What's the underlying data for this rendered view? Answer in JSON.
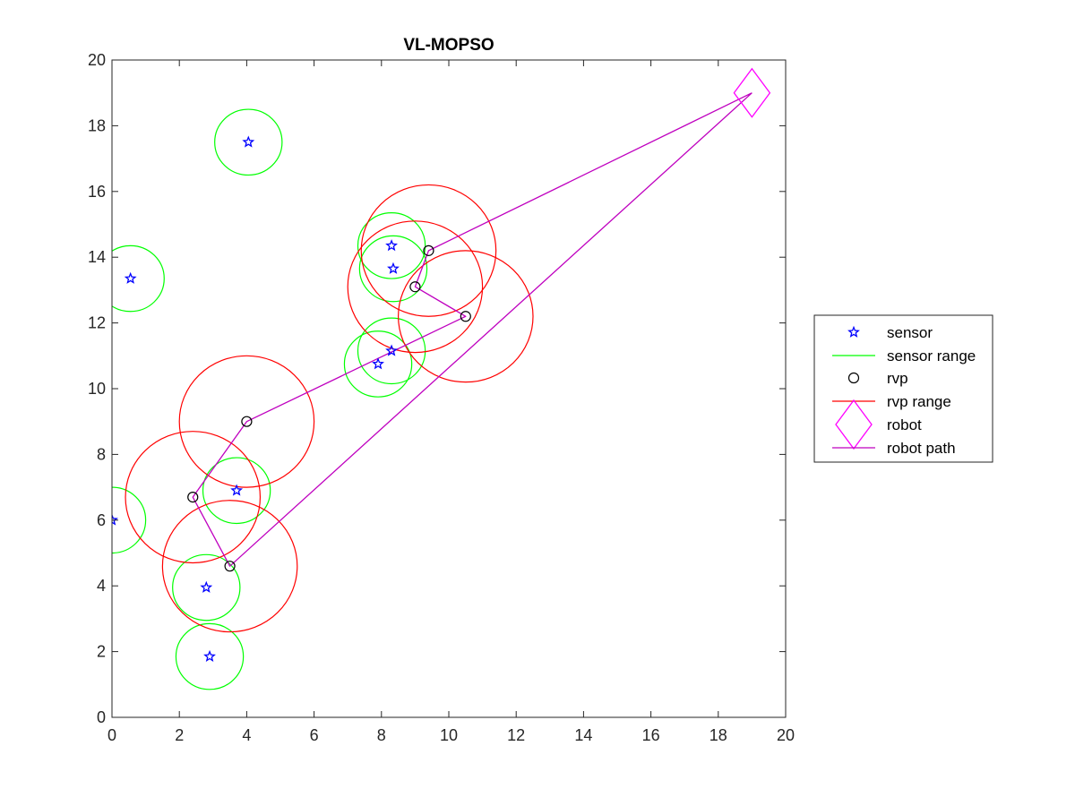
{
  "chart_data": {
    "type": "scatter",
    "title": "VL-MOPSO",
    "xlabel": "",
    "ylabel": "",
    "xlim": [
      0,
      20
    ],
    "ylim": [
      0,
      20
    ],
    "xticks": [
      0,
      2,
      4,
      6,
      8,
      10,
      12,
      14,
      16,
      18,
      20
    ],
    "yticks": [
      0,
      2,
      4,
      6,
      8,
      10,
      12,
      14,
      16,
      18,
      20
    ],
    "grid": false,
    "legend_position": "outside-right",
    "legend": [
      {
        "key": "sensor",
        "label": "sensor"
      },
      {
        "key": "sensor_range",
        "label": "sensor range"
      },
      {
        "key": "rvp",
        "label": "rvp"
      },
      {
        "key": "rvp_range",
        "label": "rvp range"
      },
      {
        "key": "robot",
        "label": "robot"
      },
      {
        "key": "robot_path",
        "label": "robot path"
      }
    ],
    "sensors": [
      {
        "x": 4.05,
        "y": 17.5
      },
      {
        "x": 0.55,
        "y": 13.35
      },
      {
        "x": 8.3,
        "y": 14.35
      },
      {
        "x": 8.35,
        "y": 13.65
      },
      {
        "x": 8.3,
        "y": 11.15
      },
      {
        "x": 7.9,
        "y": 10.75
      },
      {
        "x": 3.7,
        "y": 6.9
      },
      {
        "x": 0.0,
        "y": 6.0
      },
      {
        "x": 2.8,
        "y": 3.95
      },
      {
        "x": 2.9,
        "y": 1.85
      }
    ],
    "sensor_range_radius": 1.0,
    "rvps": [
      {
        "x": 9.4,
        "y": 14.2
      },
      {
        "x": 9.0,
        "y": 13.1
      },
      {
        "x": 10.5,
        "y": 12.2
      },
      {
        "x": 4.0,
        "y": 9.0
      },
      {
        "x": 2.4,
        "y": 6.7
      },
      {
        "x": 3.5,
        "y": 4.6
      }
    ],
    "rvp_range_radius": 2.0,
    "robot": {
      "x": 19.0,
      "y": 19.0
    },
    "robot_path": [
      {
        "x": 19.0,
        "y": 19.0
      },
      {
        "x": 9.4,
        "y": 14.2
      },
      {
        "x": 9.0,
        "y": 13.1
      },
      {
        "x": 10.5,
        "y": 12.2
      },
      {
        "x": 4.0,
        "y": 9.0
      },
      {
        "x": 2.4,
        "y": 6.7
      },
      {
        "x": 3.5,
        "y": 4.6
      },
      {
        "x": 19.0,
        "y": 19.0
      }
    ],
    "colors": {
      "sensor": "#0000ff",
      "sensor_range": "#00ff00",
      "rvp": "#000000",
      "rvp_range": "#ff0000",
      "robot": "#ff00ff",
      "robot_path": "#bf00bf",
      "axes": "#262626"
    }
  }
}
